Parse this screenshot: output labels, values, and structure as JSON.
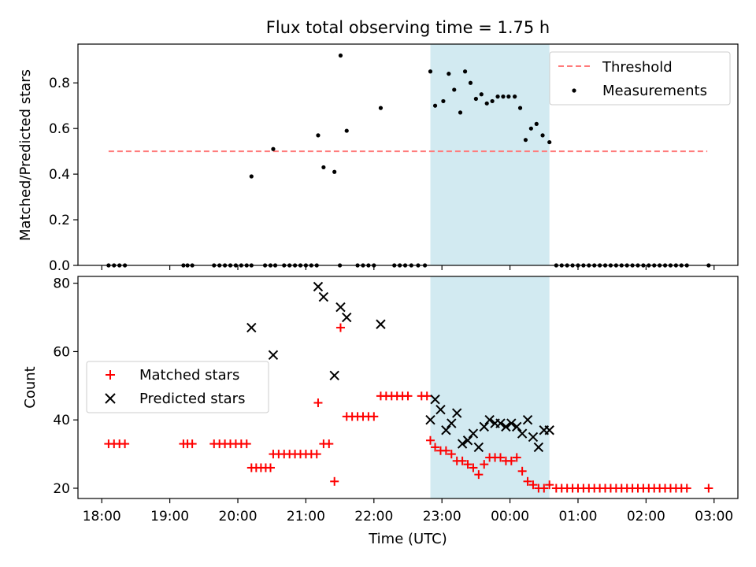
{
  "chart_data": [
    {
      "type": "scatter",
      "title": "Flux total observing time = 1.75 h",
      "ylabel": "Matched/Predicted stars",
      "ylim": [
        0,
        0.97
      ],
      "xlim": [
        -0.35,
        9.35
      ],
      "yticks": [
        0.0,
        0.2,
        0.4,
        0.6,
        0.8
      ],
      "ytick_labels": [
        "0.0",
        "0.2",
        "0.4",
        "0.6",
        "0.8"
      ],
      "highlight_span": [
        4.83,
        6.58
      ],
      "highlight_color": "#add8e6",
      "legend_position": "top-right",
      "series": [
        {
          "name": "Threshold",
          "kind": "dashed-line",
          "color": "#ff7b7b",
          "x": [
            0.1,
            8.9
          ],
          "y": [
            0.5,
            0.5
          ]
        },
        {
          "name": "Measurements",
          "kind": "dots",
          "color": "#000000",
          "x": [
            0.1,
            0.18,
            0.26,
            0.34,
            1.2,
            1.26,
            1.33,
            1.65,
            1.73,
            1.81,
            1.89,
            1.97,
            2.05,
            2.13,
            2.2,
            2.4,
            2.48,
            2.55,
            2.68,
            2.76,
            2.84,
            2.92,
            3.0,
            3.08,
            3.16,
            3.5,
            3.76,
            3.84,
            3.92,
            4.0,
            4.3,
            4.38,
            4.46,
            4.55,
            4.65,
            4.75,
            2.2,
            2.52,
            3.18,
            3.26,
            3.42,
            3.51,
            3.6,
            4.1,
            4.83,
            4.9,
            5.02,
            5.1,
            5.18,
            5.27,
            5.34,
            5.42,
            5.5,
            5.58,
            5.66,
            5.74,
            5.82,
            5.9,
            5.98,
            6.07,
            6.15,
            6.23,
            6.31,
            6.39,
            6.48,
            6.58,
            6.68,
            6.76,
            6.84,
            6.92,
            7.0,
            7.08,
            7.16,
            7.24,
            7.32,
            7.4,
            7.48,
            7.56,
            7.64,
            7.72,
            7.8,
            7.88,
            7.96,
            8.04,
            8.12,
            8.2,
            8.28,
            8.36,
            8.44,
            8.52,
            8.6,
            8.92
          ],
          "y": [
            0,
            0,
            0,
            0,
            0,
            0,
            0,
            0,
            0,
            0,
            0,
            0,
            0,
            0,
            0,
            0,
            0,
            0,
            0,
            0,
            0,
            0,
            0,
            0,
            0,
            0,
            0,
            0,
            0,
            0,
            0,
            0,
            0,
            0,
            0,
            0,
            0.39,
            0.51,
            0.57,
            0.43,
            0.41,
            0.92,
            0.59,
            0.69,
            0.85,
            0.7,
            0.72,
            0.84,
            0.77,
            0.67,
            0.85,
            0.8,
            0.73,
            0.75,
            0.71,
            0.72,
            0.74,
            0.74,
            0.74,
            0.74,
            0.69,
            0.55,
            0.6,
            0.62,
            0.57,
            0.54,
            0,
            0,
            0,
            0,
            0,
            0,
            0,
            0,
            0,
            0,
            0,
            0,
            0,
            0,
            0,
            0,
            0,
            0,
            0,
            0,
            0,
            0,
            0,
            0,
            0,
            0
          ]
        }
      ]
    },
    {
      "type": "scatter",
      "xlabel": "Time (UTC)",
      "ylabel": "Count",
      "ylim": [
        17,
        82
      ],
      "xlim": [
        -0.35,
        9.35
      ],
      "yticks": [
        20,
        40,
        60,
        80
      ],
      "ytick_labels": [
        "20",
        "40",
        "60",
        "80"
      ],
      "xticks": [
        0,
        1,
        2,
        3,
        4,
        5,
        6,
        7,
        8,
        9
      ],
      "xtick_labels": [
        "18:00",
        "19:00",
        "20:00",
        "21:00",
        "22:00",
        "23:00",
        "00:00",
        "01:00",
        "02:00",
        "03:00"
      ],
      "highlight_span": [
        4.83,
        6.58
      ],
      "highlight_color": "#add8e6",
      "legend_position": "center-left",
      "series": [
        {
          "name": "Matched stars",
          "kind": "plus",
          "color": "#ff0000",
          "x": [
            0.1,
            0.18,
            0.26,
            0.34,
            1.2,
            1.26,
            1.33,
            1.65,
            1.73,
            1.81,
            1.89,
            1.97,
            2.05,
            2.13,
            2.2,
            2.27,
            2.34,
            2.41,
            2.48,
            2.52,
            2.6,
            2.68,
            2.76,
            2.84,
            2.92,
            3.0,
            3.08,
            3.16,
            3.18,
            3.26,
            3.34,
            3.42,
            3.51,
            3.6,
            3.68,
            3.76,
            3.84,
            3.92,
            4.0,
            4.1,
            4.18,
            4.26,
            4.34,
            4.42,
            4.5,
            4.7,
            4.78,
            4.83,
            4.9,
            4.98,
            5.06,
            5.14,
            5.22,
            5.3,
            5.38,
            5.46,
            5.54,
            5.62,
            5.7,
            5.78,
            5.86,
            5.94,
            6.02,
            6.1,
            6.18,
            6.26,
            6.34,
            6.42,
            6.5,
            6.58,
            6.68,
            6.76,
            6.84,
            6.92,
            7.0,
            7.08,
            7.16,
            7.24,
            7.32,
            7.4,
            7.48,
            7.56,
            7.64,
            7.72,
            7.8,
            7.88,
            7.96,
            8.04,
            8.12,
            8.2,
            8.28,
            8.36,
            8.44,
            8.52,
            8.6,
            8.92
          ],
          "y": [
            33,
            33,
            33,
            33,
            33,
            33,
            33,
            33,
            33,
            33,
            33,
            33,
            33,
            33,
            26,
            26,
            26,
            26,
            26,
            30,
            30,
            30,
            30,
            30,
            30,
            30,
            30,
            30,
            45,
            33,
            33,
            22,
            67,
            41,
            41,
            41,
            41,
            41,
            41,
            47,
            47,
            47,
            47,
            47,
            47,
            47,
            47,
            34,
            32,
            31,
            31,
            30,
            28,
            28,
            27,
            26,
            24,
            27,
            29,
            29,
            29,
            28,
            28,
            29,
            25,
            22,
            21,
            20,
            20,
            21,
            20,
            20,
            20,
            20,
            20,
            20,
            20,
            20,
            20,
            20,
            20,
            20,
            20,
            20,
            20,
            20,
            20,
            20,
            20,
            20,
            20,
            20,
            20,
            20,
            20,
            20
          ]
        },
        {
          "name": "Predicted stars",
          "kind": "cross",
          "color": "#000000",
          "x": [
            2.2,
            2.52,
            3.18,
            3.26,
            3.42,
            3.51,
            3.6,
            4.1,
            4.83,
            4.9,
            4.98,
            5.06,
            5.14,
            5.22,
            5.3,
            5.38,
            5.46,
            5.54,
            5.62,
            5.7,
            5.78,
            5.86,
            5.94,
            6.02,
            6.1,
            6.18,
            6.26,
            6.34,
            6.42,
            6.5,
            6.58
          ],
          "y": [
            67,
            59,
            79,
            76,
            53,
            73,
            70,
            68,
            40,
            46,
            43,
            37,
            39,
            42,
            33,
            34,
            36,
            32,
            38,
            40,
            39,
            39,
            38,
            39,
            38,
            36,
            40,
            35,
            32,
            37,
            37
          ]
        }
      ]
    }
  ]
}
